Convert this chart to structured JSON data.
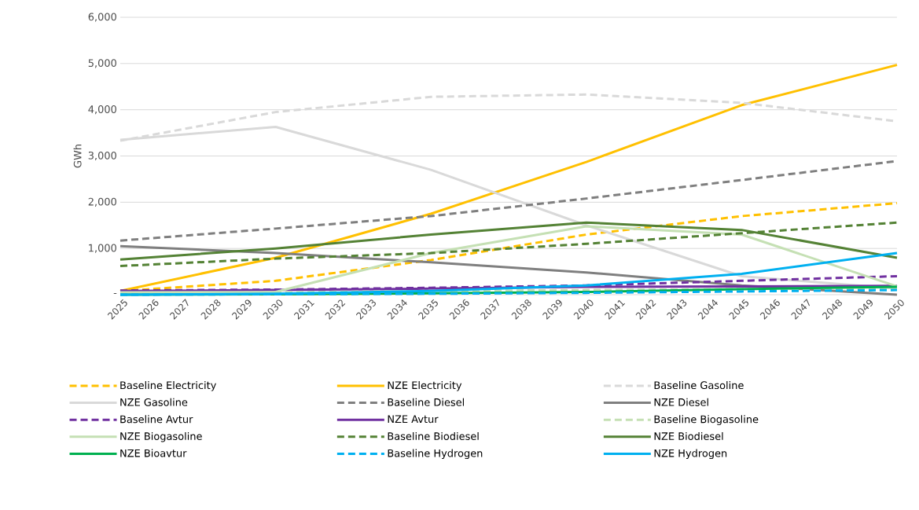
{
  "chart_data": {
    "type": "line",
    "ylabel": "GWh",
    "x": [
      2025,
      2030,
      2035,
      2040,
      2045,
      2050
    ],
    "xlim": [
      2025,
      2050
    ],
    "xticks": [
      2025,
      2026,
      2027,
      2028,
      2029,
      2030,
      2031,
      2032,
      2033,
      2034,
      2035,
      2036,
      2037,
      2038,
      2039,
      2040,
      2041,
      2042,
      2043,
      2044,
      2045,
      2046,
      2047,
      2048,
      2049,
      2050
    ],
    "ylim": [
      0,
      6000
    ],
    "yticks": [
      {
        "value": 0,
        "label": "-"
      },
      {
        "value": 1000,
        "label": "1,000"
      },
      {
        "value": 2000,
        "label": "2,000"
      },
      {
        "value": 3000,
        "label": "3,000"
      },
      {
        "value": 4000,
        "label": "4,000"
      },
      {
        "value": 5000,
        "label": "5,000"
      },
      {
        "value": 6000,
        "label": "6,000"
      }
    ],
    "grid": "y",
    "legend": "bottom",
    "marker": "none",
    "series": [
      {
        "name": "Baseline Electricity",
        "color": "#ffc000",
        "line_style": "dashed",
        "values": [
          80,
          300,
          750,
          1300,
          1700,
          1980
        ]
      },
      {
        "name": "NZE Electricity",
        "color": "#ffc000",
        "line_style": "solid",
        "values": [
          80,
          800,
          1750,
          2870,
          4100,
          4970
        ]
      },
      {
        "name": "Baseline Gasoline",
        "color": "#d9d9d9",
        "line_style": "dashed",
        "values": [
          3330,
          3950,
          4280,
          4330,
          4150,
          3750
        ]
      },
      {
        "name": "NZE Gasoline",
        "color": "#d9d9d9",
        "line_style": "solid",
        "values": [
          3350,
          3630,
          2700,
          1500,
          400,
          130
        ]
      },
      {
        "name": "Baseline Diesel",
        "color": "#7f7f7f",
        "line_style": "dashed",
        "values": [
          1170,
          1430,
          1700,
          2080,
          2480,
          2890
        ]
      },
      {
        "name": "NZE Diesel",
        "color": "#7f7f7f",
        "line_style": "solid",
        "values": [
          1050,
          900,
          700,
          480,
          200,
          0
        ]
      },
      {
        "name": "Baseline Avtur",
        "color": "#7030a0",
        "line_style": "dashed",
        "values": [
          90,
          110,
          150,
          200,
          300,
          400
        ]
      },
      {
        "name": "NZE Avtur",
        "color": "#7030a0",
        "line_style": "solid",
        "values": [
          80,
          100,
          130,
          170,
          180,
          190
        ]
      },
      {
        "name": "Baseline Biogasoline",
        "color": "#c5e0b4",
        "line_style": "dashed",
        "values": [
          20,
          50,
          80,
          100,
          120,
          130
        ]
      },
      {
        "name": "NZE Biogasoline",
        "color": "#c5e0b4",
        "line_style": "solid",
        "values": [
          50,
          60,
          900,
          1480,
          1300,
          180
        ]
      },
      {
        "name": "Baseline Biodiesel",
        "color": "#548235",
        "line_style": "dashed",
        "values": [
          620,
          780,
          900,
          1100,
          1330,
          1560
        ]
      },
      {
        "name": "NZE Biodiesel",
        "color": "#548235",
        "line_style": "solid",
        "values": [
          760,
          1000,
          1300,
          1560,
          1400,
          800
        ]
      },
      {
        "name": "NZE Bioavtur",
        "color": "#00b050",
        "line_style": "solid",
        "values": [
          0,
          10,
          30,
          60,
          120,
          170
        ]
      },
      {
        "name": "Baseline Hydrogen",
        "color": "#00b0f0",
        "line_style": "dashed",
        "values": [
          0,
          10,
          20,
          40,
          70,
          100
        ]
      },
      {
        "name": "NZE Hydrogen",
        "color": "#00b0f0",
        "line_style": "solid",
        "values": [
          0,
          20,
          80,
          200,
          450,
          900
        ]
      }
    ]
  }
}
